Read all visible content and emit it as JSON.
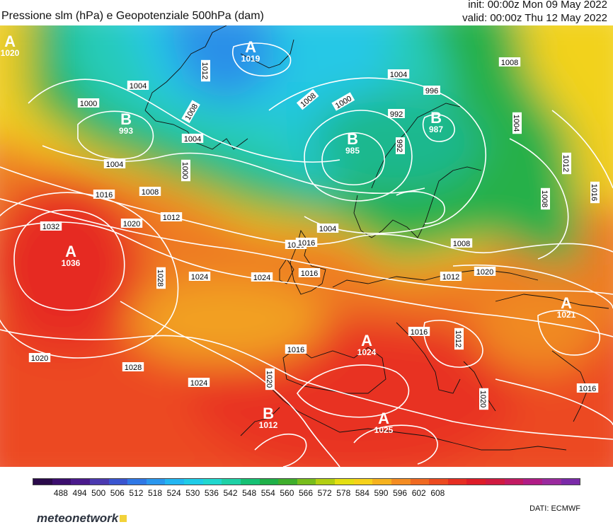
{
  "title": "Pressione slm (hPa) e Geopotenziale 500hPa (dam)",
  "init": "init: 00:00z Mon 09 May 2022",
  "valid": "valid: 00:00z Thu 12 May 2022",
  "source": "DATI:  ECMWF",
  "brand": "meteonetwork",
  "legend": {
    "ticks": [
      "488",
      "494",
      "500",
      "506",
      "512",
      "518",
      "524",
      "530",
      "536",
      "542",
      "548",
      "554",
      "560",
      "566",
      "572",
      "578",
      "584",
      "590",
      "596",
      "602",
      "608"
    ],
    "colors": [
      "#2a0a4a",
      "#3b0e6e",
      "#4a1a8c",
      "#4b3ab0",
      "#3a55d0",
      "#2f78e6",
      "#2a97ee",
      "#23b6f2",
      "#1fcce8",
      "#21d8cf",
      "#1fd1a6",
      "#16c174",
      "#1fb048",
      "#3fae2c",
      "#78bd1c",
      "#b2cf12",
      "#e4df12",
      "#f6d21a",
      "#f6b21e",
      "#f48c22",
      "#f06a22",
      "#ec4a20",
      "#e62e22",
      "#de1c28",
      "#d01a40",
      "#c21a62",
      "#b01c86",
      "#9a2a9e",
      "#7a2aa8"
    ]
  },
  "centers": [
    {
      "letter": "A",
      "value": "1020"
    },
    {
      "letter": "A",
      "value": "1019"
    },
    {
      "letter": "B",
      "value": "993"
    },
    {
      "letter": "B",
      "value": "985"
    },
    {
      "letter": "B",
      "value": "987"
    },
    {
      "letter": "A",
      "value": "1036"
    },
    {
      "letter": "A",
      "value": "1024"
    },
    {
      "letter": "A",
      "value": "1021"
    },
    {
      "letter": "B",
      "value": "1012"
    },
    {
      "letter": "A",
      "value": "1025"
    }
  ],
  "isobar_labels": [
    "1012",
    "1000",
    "1004",
    "1008",
    "1004",
    "1000",
    "1008",
    "1000",
    "1004",
    "996",
    "992",
    "992",
    "1008",
    "1004",
    "1012",
    "1016",
    "1004",
    "1008",
    "1016",
    "1012",
    "1020",
    "1032",
    "1008",
    "1004",
    "1016",
    "1016",
    "1008",
    "1012",
    "1020",
    "1024",
    "1028",
    "1024",
    "1016",
    "1020",
    "1028",
    "1024",
    "1020",
    "1016",
    "1012",
    "1016",
    "1020",
    "1016"
  ]
}
